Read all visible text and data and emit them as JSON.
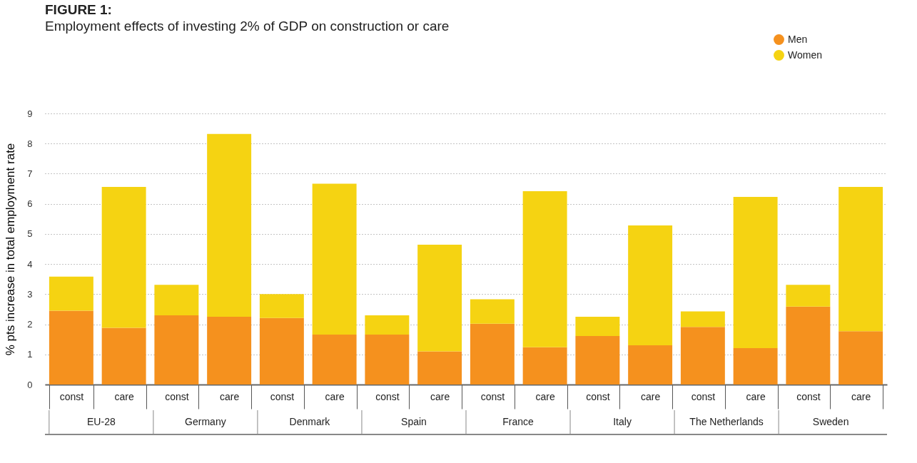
{
  "chart_data": {
    "type": "bar",
    "title": "FIGURE 1:",
    "subtitle": "Employment effects of investing 2% of GDP on construction or care",
    "ylabel": "% pts increase in total employment rate",
    "categories": [
      "const",
      "care",
      "const",
      "care",
      "const",
      "care",
      "const",
      "care",
      "const",
      "care",
      "const",
      "care",
      "const",
      "care",
      "const",
      "care"
    ],
    "annotations": [
      "EU-28",
      "Germany",
      "Denmark",
      "Spain",
      "France",
      "Italy",
      "The Netherlands",
      "Sweden"
    ],
    "stacked": true,
    "series": [
      {
        "name": "Men",
        "color": "#f5911e",
        "values": [
          2.45,
          1.88,
          2.3,
          2.25,
          2.21,
          1.66,
          1.66,
          1.1,
          2.02,
          1.24,
          1.61,
          1.3,
          1.91,
          1.21,
          2.59,
          1.77
        ]
      },
      {
        "name": "Women",
        "color": "#f5d312",
        "values": [
          1.13,
          4.68,
          1.01,
          6.07,
          0.79,
          5.01,
          0.64,
          3.54,
          0.81,
          5.18,
          0.64,
          3.98,
          0.52,
          5.02,
          0.72,
          4.79
        ]
      }
    ],
    "ylim": [
      0,
      9
    ],
    "yticks": [
      0,
      1,
      2,
      3,
      4,
      5,
      6,
      7,
      8,
      9
    ],
    "grid": "y",
    "legend": "top right"
  }
}
